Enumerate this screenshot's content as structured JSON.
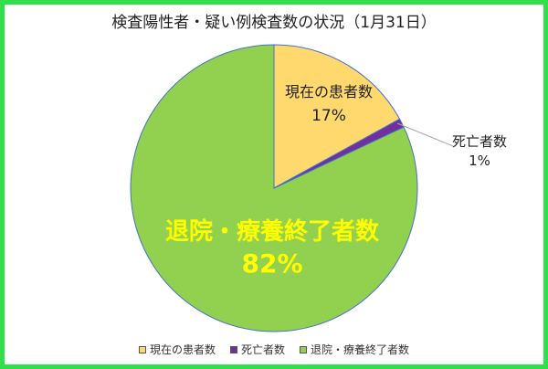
{
  "chart_data": {
    "type": "pie",
    "title": "検査陽性者・疑い例検査数の状況（1月31日）",
    "slices": [
      {
        "name": "現在の患者数",
        "value": 17,
        "label": "17%",
        "color": "#ffd86e"
      },
      {
        "name": "死亡者数",
        "value": 1,
        "label": "1%",
        "color": "#7030a0"
      },
      {
        "name": "退院・療養終了者数",
        "value": 82,
        "label": "82%",
        "color": "#92d050"
      }
    ],
    "legend_position": "bottom",
    "legend": [
      "現在の患者数",
      "死亡者数",
      "退院・療養終了者数"
    ],
    "colors": {
      "frame": "#2fe04a",
      "outline": "#4472c4",
      "big_label": "#ffff00"
    }
  }
}
